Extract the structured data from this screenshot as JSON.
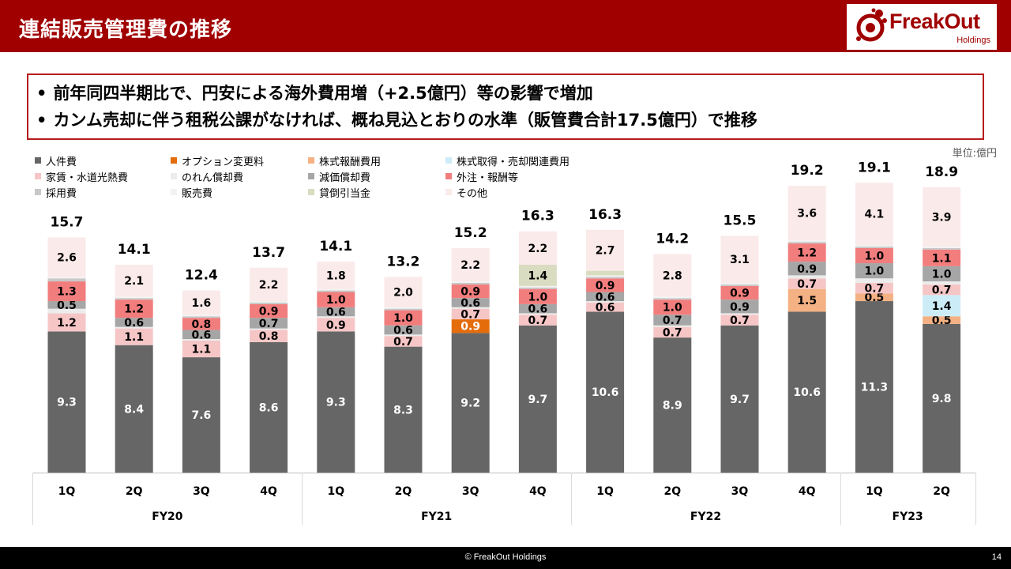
{
  "header": {
    "title": "連結販売管理費の推移",
    "logo_text": "FreakOut",
    "logo_sub": "Holdings",
    "bg_color": "#a00000"
  },
  "notes": [
    "前年同四半期比で、円安による海外費用増（+2.5億円）等の影響で増加",
    "カンム売却に伴う租税公課がなければ、概ね見込とおりの水準（販管費合計17.5億円）で推移"
  ],
  "unit_label": "単位:億円",
  "chart_data": {
    "type": "bar",
    "stacked": true,
    "categories": [
      "1Q",
      "2Q",
      "3Q",
      "4Q",
      "1Q",
      "2Q",
      "3Q",
      "4Q",
      "1Q",
      "2Q",
      "3Q",
      "4Q",
      "1Q",
      "2Q"
    ],
    "groups": [
      {
        "label": "FY20",
        "count": 4
      },
      {
        "label": "FY21",
        "count": 4
      },
      {
        "label": "FY22",
        "count": 4
      },
      {
        "label": "FY23",
        "count": 2
      }
    ],
    "totals": [
      "15.7",
      "14.1",
      "12.4",
      "13.7",
      "14.1",
      "13.2",
      "15.2",
      "16.3",
      "16.3",
      "14.2",
      "15.5",
      "19.2",
      "19.1",
      "18.9"
    ],
    "ylim": [
      0,
      21
    ],
    "series": [
      {
        "name": "人件費",
        "color": "#666666",
        "values": [
          9.3,
          8.4,
          7.6,
          8.6,
          9.3,
          8.3,
          9.2,
          9.7,
          10.6,
          8.9,
          9.7,
          10.6,
          11.3,
          9.8
        ]
      },
      {
        "name": "オプション変更料",
        "color": "#e46c0a",
        "values": [
          0,
          0,
          0,
          0,
          0,
          0,
          0.9,
          0,
          0,
          0,
          0,
          0,
          0,
          0
        ]
      },
      {
        "name": "株式報酬費用",
        "color": "#f4b183",
        "values": [
          0,
          0,
          0,
          0,
          0,
          0,
          0,
          0,
          0,
          0,
          0,
          1.5,
          0.5,
          0.5
        ]
      },
      {
        "name": "株式取得・売却関連費用",
        "color": "#ccecf8",
        "values": [
          0,
          0,
          0,
          0,
          0,
          0,
          0,
          0,
          0,
          0,
          0,
          0,
          0,
          1.4
        ]
      },
      {
        "name": "家賃・水道光熱費",
        "color": "#f6c6c6",
        "values": [
          1.2,
          1.1,
          1.1,
          0.8,
          0.9,
          0.7,
          0.7,
          0.7,
          0.6,
          0.7,
          0.7,
          0.7,
          0.7,
          0.7
        ]
      },
      {
        "name": "のれん償却費",
        "color": "#ececec",
        "values": [
          0.3,
          0.1,
          0.1,
          0.1,
          0.1,
          0.1,
          0.1,
          0.1,
          0.1,
          0.1,
          0.1,
          0.2,
          0.3,
          0.2
        ]
      },
      {
        "name": "減価償却費",
        "color": "#a6a6a6",
        "values": [
          0.5,
          0.6,
          0.6,
          0.7,
          0.6,
          0.6,
          0.6,
          0.6,
          0.6,
          0.7,
          0.9,
          0.9,
          1.0,
          1.0
        ]
      },
      {
        "name": "外注・報酬等",
        "color": "#f27d7d",
        "values": [
          1.3,
          1.2,
          0.8,
          0.9,
          1.0,
          1.0,
          0.9,
          1.0,
          0.9,
          1.0,
          0.9,
          1.2,
          1.0,
          1.1
        ]
      },
      {
        "name": "採用費",
        "color": "#c8c8c8",
        "values": [
          0.2,
          0.1,
          0.1,
          0.1,
          0.1,
          0.1,
          0.1,
          0.1,
          0.1,
          0.1,
          0.1,
          0.1,
          0.1,
          0.1
        ]
      },
      {
        "name": "販売費",
        "color": "#f2f2f2",
        "values": [
          0.1,
          0.1,
          0.1,
          0.1,
          0.1,
          0.1,
          0.1,
          0.1,
          0.1,
          0.1,
          0.1,
          0.1,
          0.1,
          0.1
        ]
      },
      {
        "name": "貸倒引当金",
        "color": "#d9dcc0",
        "values": [
          0,
          0,
          0,
          0,
          0,
          0,
          0,
          1.4,
          0.3,
          0,
          0,
          0,
          0,
          0
        ]
      },
      {
        "name": "その他",
        "color": "#fbeaea",
        "values": [
          2.6,
          2.1,
          1.6,
          2.2,
          1.8,
          2.0,
          2.2,
          2.2,
          2.7,
          2.8,
          3.1,
          3.6,
          4.1,
          3.9
        ]
      }
    ],
    "labels": [
      [
        "9.3",
        null,
        null,
        null,
        "1.2",
        null,
        "0.5",
        "1.3",
        null,
        null,
        null,
        "2.6"
      ],
      [
        "8.4",
        null,
        null,
        null,
        "1.1",
        null,
        "0.6",
        "1.2",
        null,
        null,
        null,
        "2.1"
      ],
      [
        "7.6",
        null,
        null,
        null,
        "1.1",
        null,
        "0.6",
        "0.8",
        null,
        null,
        null,
        "1.6"
      ],
      [
        "8.6",
        null,
        null,
        null,
        "0.8",
        null,
        "0.7",
        "0.9",
        null,
        null,
        null,
        "2.2"
      ],
      [
        "9.3",
        null,
        null,
        null,
        "0.9",
        null,
        "0.6",
        "1.0",
        null,
        null,
        null,
        "1.8"
      ],
      [
        "8.3",
        null,
        null,
        null,
        "0.7",
        null,
        "0.6",
        "1.0",
        null,
        null,
        null,
        "2.0"
      ],
      [
        "9.2",
        "0.9",
        null,
        null,
        "0.7",
        null,
        "0.6",
        "0.9",
        null,
        null,
        null,
        "2.2"
      ],
      [
        "9.7",
        null,
        null,
        null,
        "0.7",
        null,
        "0.6",
        "1.0",
        null,
        null,
        "1.4",
        "2.2"
      ],
      [
        "10.6",
        null,
        null,
        null,
        "0.6",
        null,
        "0.6",
        "0.9",
        null,
        null,
        null,
        "2.7"
      ],
      [
        "8.9",
        null,
        null,
        null,
        "0.7",
        null,
        "0.7",
        "1.0",
        null,
        null,
        null,
        "2.8"
      ],
      [
        "9.7",
        null,
        null,
        null,
        "0.7",
        null,
        "0.9",
        "0.9",
        null,
        null,
        null,
        "3.1"
      ],
      [
        "10.6",
        null,
        "1.5",
        null,
        "0.7",
        null,
        "0.9",
        "1.2",
        null,
        null,
        null,
        "3.6"
      ],
      [
        "11.3",
        null,
        "0.5",
        null,
        "0.7",
        null,
        "1.0",
        "1.0",
        null,
        null,
        null,
        "4.1"
      ],
      [
        "9.8",
        null,
        "0.5",
        "1.4",
        "0.7",
        null,
        "1.0",
        "1.1",
        null,
        null,
        null,
        "3.9"
      ]
    ]
  },
  "footer": {
    "copyright": "© FreakOut Holdings",
    "page": "14"
  }
}
